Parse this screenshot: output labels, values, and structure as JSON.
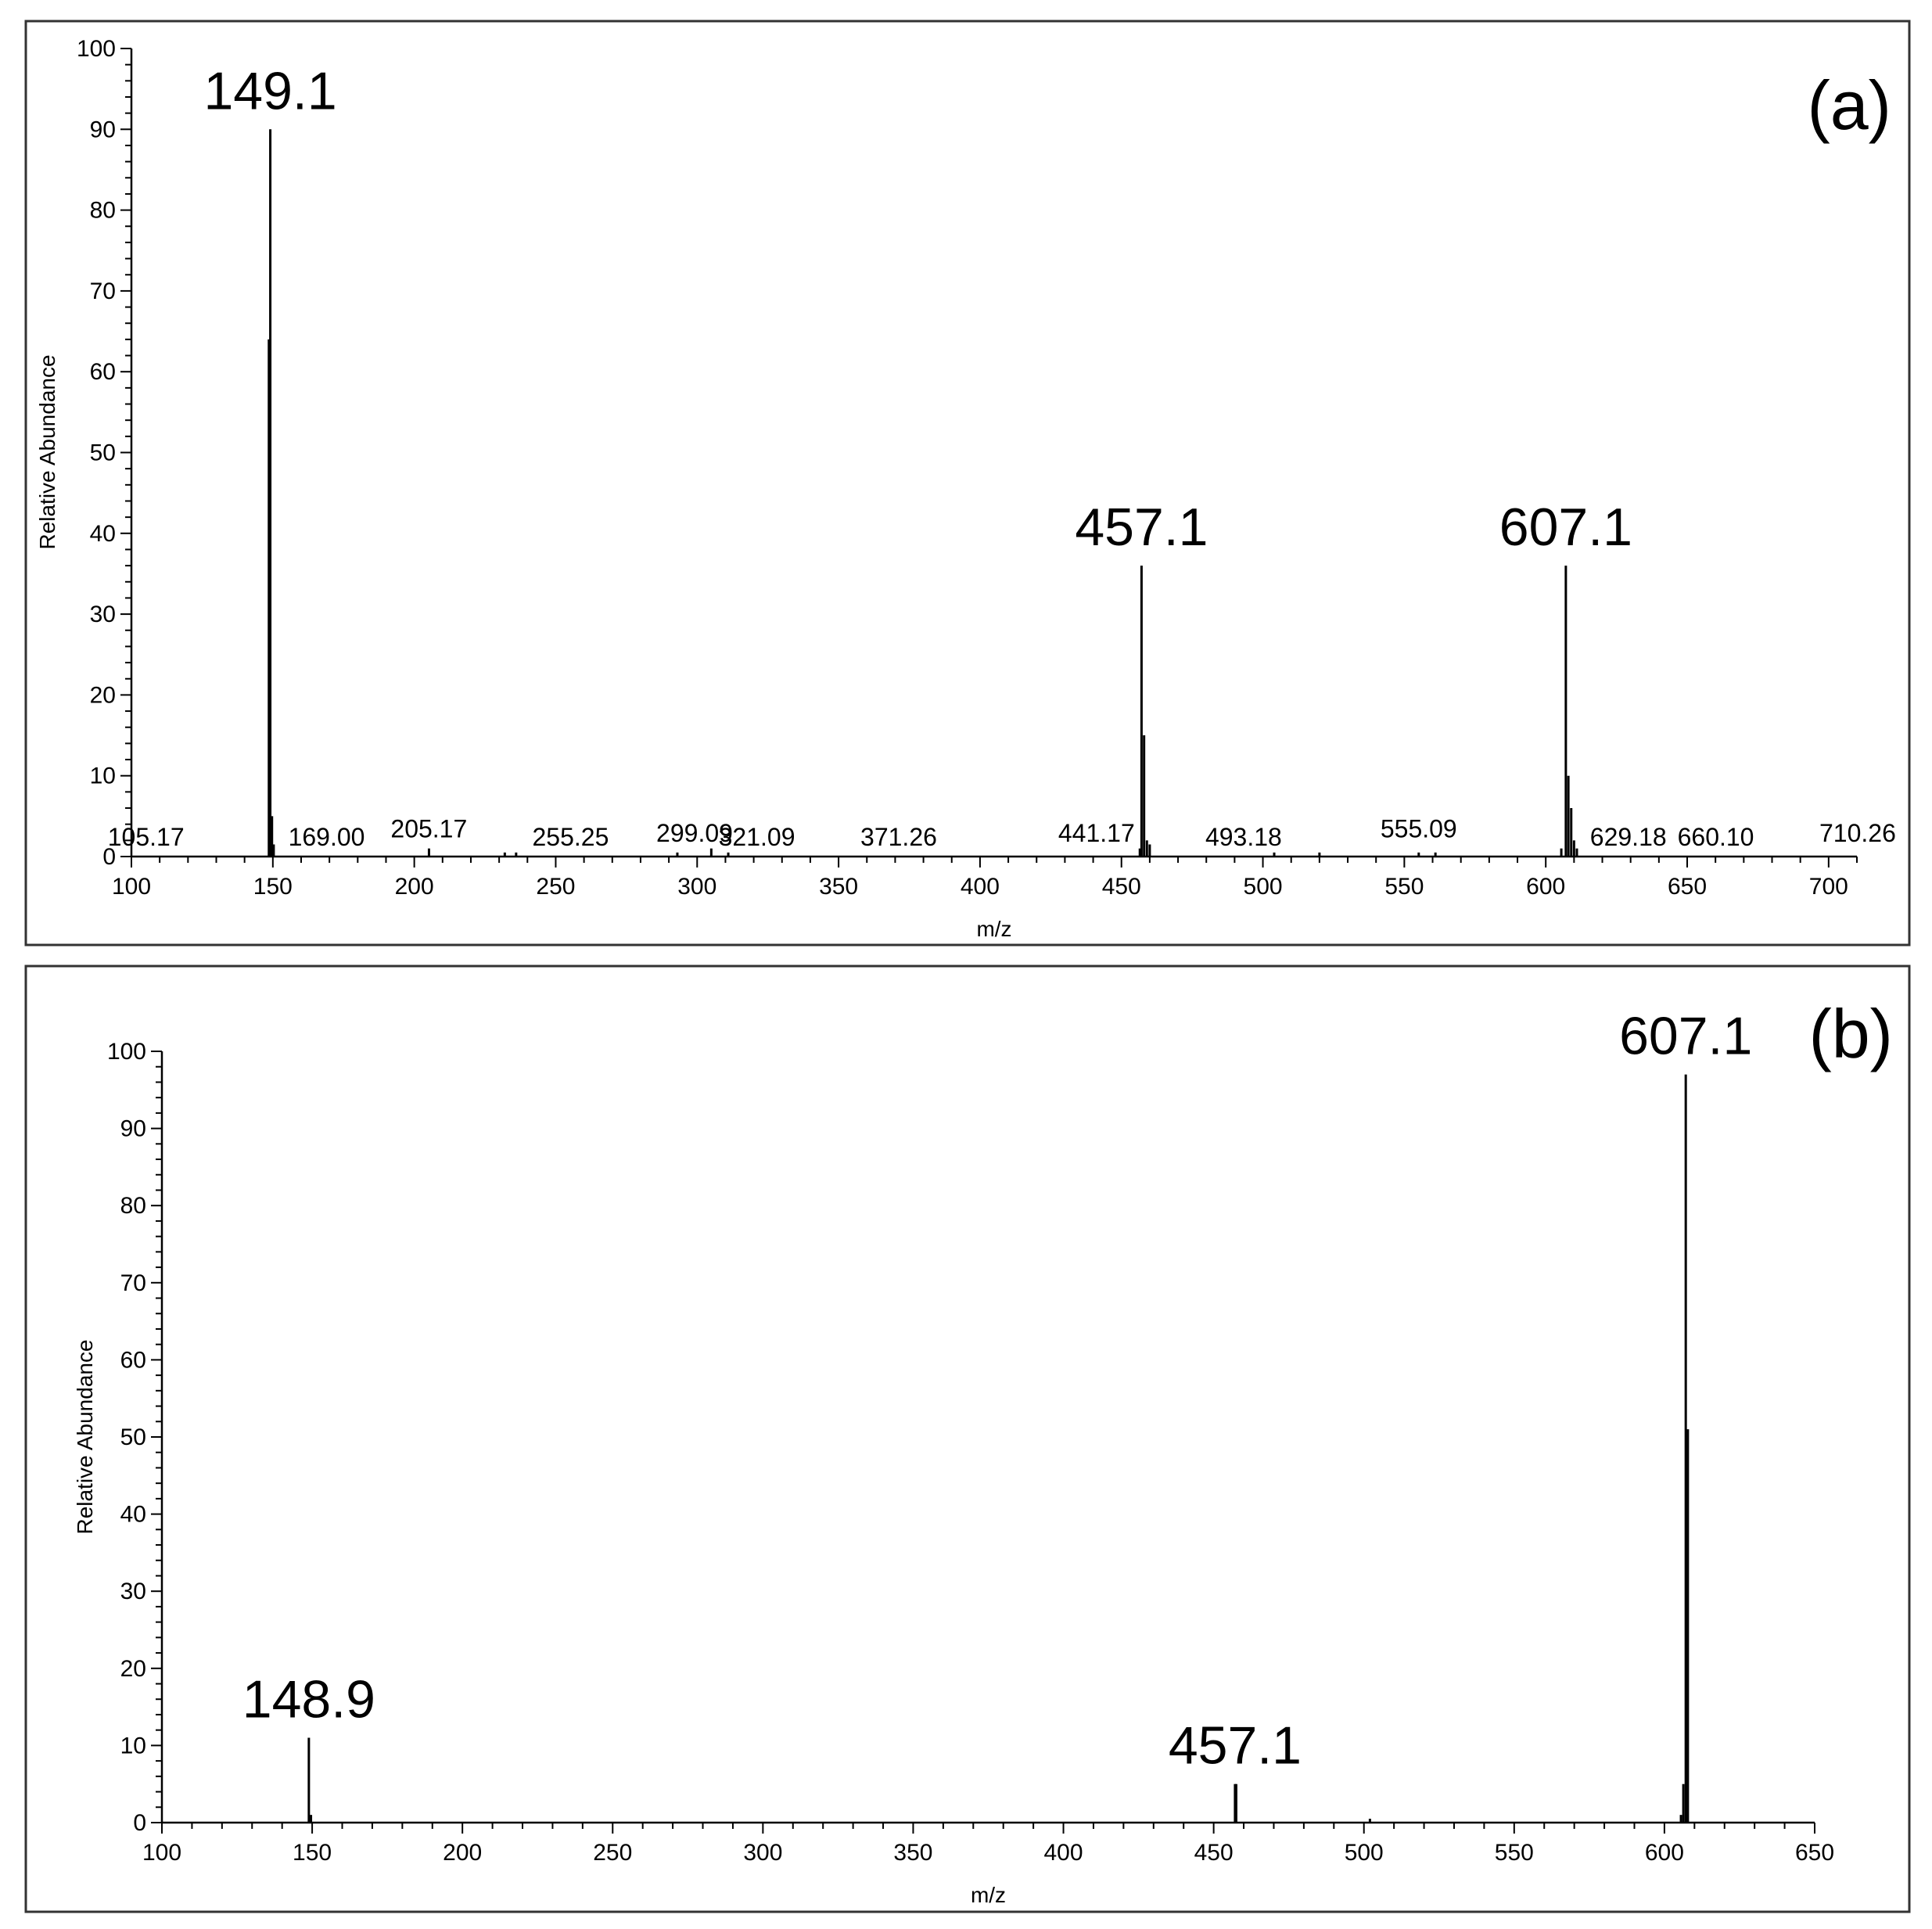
{
  "chart_data": [
    {
      "type": "bar",
      "panel_label": "(a)",
      "xlabel": "m/z",
      "ylabel": "Relative Abundance",
      "xlim": [
        100,
        710
      ],
      "ylim": [
        0,
        100
      ],
      "x_ticks": [
        100,
        150,
        200,
        250,
        300,
        350,
        400,
        450,
        500,
        550,
        600,
        650,
        700
      ],
      "y_ticks": [
        0,
        10,
        20,
        30,
        40,
        50,
        60,
        70,
        80,
        90,
        100
      ],
      "peaks": [
        {
          "x": 148.6,
          "y": 64
        },
        {
          "x": 149.1,
          "y": 90
        },
        {
          "x": 149.7,
          "y": 5
        },
        {
          "x": 150.3,
          "y": 1.5
        },
        {
          "x": 205.2,
          "y": 1
        },
        {
          "x": 232,
          "y": 0.5
        },
        {
          "x": 236,
          "y": 0.5
        },
        {
          "x": 293,
          "y": 0.5
        },
        {
          "x": 305,
          "y": 1
        },
        {
          "x": 311,
          "y": 0.5
        },
        {
          "x": 456.5,
          "y": 1
        },
        {
          "x": 457.1,
          "y": 36
        },
        {
          "x": 458.0,
          "y": 15
        },
        {
          "x": 459.0,
          "y": 2
        },
        {
          "x": 460.0,
          "y": 1.5
        },
        {
          "x": 504,
          "y": 0.5
        },
        {
          "x": 520,
          "y": 0.5
        },
        {
          "x": 555.1,
          "y": 0.5
        },
        {
          "x": 561,
          "y": 0.5
        },
        {
          "x": 605.5,
          "y": 1
        },
        {
          "x": 607.1,
          "y": 36
        },
        {
          "x": 608.0,
          "y": 10
        },
        {
          "x": 609.0,
          "y": 6
        },
        {
          "x": 610.0,
          "y": 2
        },
        {
          "x": 611.0,
          "y": 1
        }
      ],
      "small_annotations": [
        {
          "text": "105.17",
          "x": 105.17,
          "y": 0
        },
        {
          "text": "169.00",
          "x": 169.0,
          "y": 0
        },
        {
          "text": "205.17",
          "x": 205.17,
          "y": 1
        },
        {
          "text": "255.25",
          "x": 255.25,
          "y": 0
        },
        {
          "text": "299.09",
          "x": 299.09,
          "y": 0.5
        },
        {
          "text": "321.09",
          "x": 321.09,
          "y": 0
        },
        {
          "text": "371.26",
          "x": 371.26,
          "y": 0
        },
        {
          "text": "441.17",
          "x": 441.17,
          "y": 0.5
        },
        {
          "text": "493.18",
          "x": 493.18,
          "y": 0
        },
        {
          "text": "555.09",
          "x": 555.09,
          "y": 1
        },
        {
          "text": "629.18",
          "x": 629.18,
          "y": 0
        },
        {
          "text": "660.10",
          "x": 660.1,
          "y": 0
        },
        {
          "text": "710.26",
          "x": 710.26,
          "y": 0.5
        }
      ],
      "major_annotations": [
        {
          "text": "149.1",
          "x": 149.1,
          "y": 90
        },
        {
          "text": "457.1",
          "x": 457.1,
          "y": 36
        },
        {
          "text": "607.1",
          "x": 607.1,
          "y": 36
        }
      ]
    },
    {
      "type": "bar",
      "panel_label": "(b)",
      "xlabel": "m/z",
      "ylabel": "Relative Abundance",
      "xlim": [
        100,
        650
      ],
      "ylim": [
        0,
        100
      ],
      "x_ticks": [
        100,
        150,
        200,
        250,
        300,
        350,
        400,
        450,
        500,
        550,
        600,
        650
      ],
      "y_ticks": [
        0,
        10,
        20,
        30,
        40,
        50,
        60,
        70,
        80,
        90,
        100
      ],
      "peaks": [
        {
          "x": 148.9,
          "y": 11
        },
        {
          "x": 149.6,
          "y": 1
        },
        {
          "x": 457.1,
          "y": 5
        },
        {
          "x": 457.5,
          "y": 5
        },
        {
          "x": 502,
          "y": 0.5
        },
        {
          "x": 605.5,
          "y": 1
        },
        {
          "x": 606.3,
          "y": 5
        },
        {
          "x": 607.1,
          "y": 97
        },
        {
          "x": 607.8,
          "y": 51
        }
      ],
      "small_annotations": [],
      "major_annotations": [
        {
          "text": "148.9",
          "x": 148.9,
          "y": 11
        },
        {
          "text": "457.1",
          "x": 457.1,
          "y": 5
        },
        {
          "text": "607.1",
          "x": 607.1,
          "y": 97
        }
      ]
    }
  ]
}
